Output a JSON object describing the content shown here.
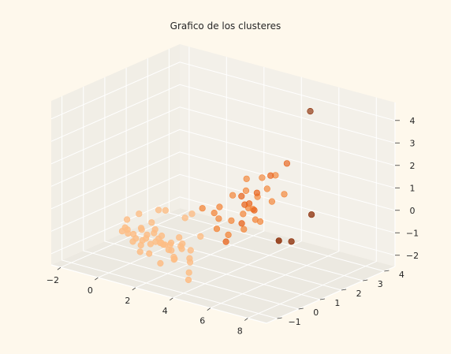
{
  "chart_data": {
    "type": "scatter",
    "projection": "3d",
    "title": "Grafico de los clusteres",
    "xlabel": "",
    "ylabel": "",
    "zlabel": "",
    "xlim": [
      -2.5,
      9
    ],
    "ylim": [
      -1.5,
      4.5
    ],
    "zlim": [
      -2.5,
      4.8
    ],
    "x_ticks": [
      "−2",
      "0",
      "2",
      "4",
      "6",
      "8"
    ],
    "y_ticks": [
      "−1",
      "0",
      "1",
      "2",
      "3",
      "4"
    ],
    "z_ticks": [
      "−2",
      "−1",
      "0",
      "1",
      "2",
      "3",
      "4"
    ],
    "x_tick_values": [
      -2,
      0,
      2,
      4,
      6,
      8
    ],
    "y_tick_values": [
      -1,
      0,
      1,
      2,
      3,
      4
    ],
    "z_tick_values": [
      -2,
      -1,
      0,
      1,
      2,
      3,
      4
    ],
    "grid": true,
    "colormap": "Oranges",
    "colors": {
      "background": "#fef8ec",
      "pane": "#f1eee6",
      "grid": "#ffffff",
      "cluster_light": "#fdbd85",
      "cluster_mid": "#f3873c",
      "cluster_dark": "#e8641d",
      "cluster_darkest": "#8b2c05"
    },
    "series": [
      {
        "cluster": 0,
        "color": "#fdbd85",
        "points": [
          [
            -1.0,
            0.5,
            -1.5
          ],
          [
            -0.8,
            0.6,
            -1.6
          ],
          [
            -0.6,
            0.4,
            -1.3
          ],
          [
            -0.5,
            0.7,
            -1.8
          ],
          [
            -0.4,
            0.5,
            -1.5
          ],
          [
            -0.3,
            0.8,
            -1.4
          ],
          [
            -0.2,
            0.3,
            -1.7
          ],
          [
            -0.1,
            0.6,
            -1.2
          ],
          [
            0.0,
            0.5,
            -1.9
          ],
          [
            0.1,
            0.7,
            -1.5
          ],
          [
            0.2,
            0.4,
            -1.6
          ],
          [
            0.3,
            0.9,
            -1.3
          ],
          [
            0.4,
            0.6,
            -1.8
          ],
          [
            0.5,
            0.3,
            -1.4
          ],
          [
            0.6,
            0.8,
            -1.6
          ],
          [
            0.7,
            0.5,
            -1.2
          ],
          [
            0.8,
            0.7,
            -1.7
          ],
          [
            0.9,
            0.4,
            -1.5
          ],
          [
            1.0,
            0.6,
            -1.3
          ],
          [
            1.1,
            0.9,
            -1.8
          ],
          [
            1.2,
            0.5,
            -1.6
          ],
          [
            1.3,
            0.3,
            -1.4
          ],
          [
            1.4,
            0.7,
            -1.9
          ],
          [
            1.5,
            0.6,
            -1.5
          ],
          [
            1.6,
            0.4,
            -1.7
          ],
          [
            1.7,
            0.8,
            -1.3
          ],
          [
            1.8,
            0.5,
            -2.1
          ],
          [
            1.9,
            0.7,
            -1.6
          ],
          [
            2.0,
            0.3,
            -2.0
          ],
          [
            2.1,
            0.6,
            -1.4
          ],
          [
            2.2,
            0.9,
            -1.8
          ],
          [
            2.3,
            0.4,
            -1.5
          ],
          [
            2.4,
            0.7,
            -2.2
          ],
          [
            2.6,
            0.5,
            -1.9
          ],
          [
            2.8,
            0.3,
            -2.4
          ],
          [
            -0.9,
            1.2,
            -1.0
          ],
          [
            -0.2,
            1.5,
            -0.8
          ],
          [
            0.4,
            1.3,
            -0.6
          ],
          [
            1.1,
            1.6,
            -0.9
          ],
          [
            1.7,
            1.4,
            -0.5
          ],
          [
            -0.5,
            0.2,
            -1.1
          ],
          [
            0.3,
            0.2,
            -2.0
          ],
          [
            0.9,
            0.1,
            -1.9
          ],
          [
            1.5,
            0.1,
            -2.2
          ],
          [
            3.0,
            0.1,
            -2.6
          ],
          [
            -1.2,
            0.9,
            -1.2
          ],
          [
            2.5,
            1.1,
            -1.2
          ],
          [
            0.6,
            1.1,
            -2.0
          ],
          [
            1.3,
            0.9,
            -2.3
          ],
          [
            0.0,
            1.0,
            -1.1
          ]
        ]
      },
      {
        "cluster": 1,
        "color": "#f3873c",
        "points": [
          [
            1.8,
            1.8,
            -0.4
          ],
          [
            2.2,
            2.0,
            -0.6
          ],
          [
            2.6,
            1.9,
            -0.2
          ],
          [
            3.0,
            2.1,
            -0.8
          ],
          [
            3.4,
            2.3,
            -0.5
          ],
          [
            3.8,
            2.2,
            -0.1
          ],
          [
            4.2,
            2.4,
            -0.7
          ],
          [
            2.5,
            2.6,
            0.0
          ],
          [
            3.1,
            2.7,
            0.3
          ],
          [
            3.6,
            2.8,
            0.1
          ],
          [
            4.0,
            2.9,
            0.5
          ],
          [
            2.8,
            1.6,
            -1.0
          ],
          [
            3.3,
            1.7,
            -1.2
          ],
          [
            3.9,
            1.9,
            -0.9
          ],
          [
            4.4,
            2.0,
            -0.4
          ],
          [
            2.1,
            2.3,
            -1.0
          ],
          [
            4.6,
            2.6,
            0.2
          ],
          [
            3.5,
            3.1,
            0.8
          ],
          [
            4.1,
            3.2,
            1.0
          ],
          [
            4.8,
            3.0,
            0.4
          ],
          [
            2.9,
            2.9,
            0.7
          ],
          [
            3.7,
            2.5,
            -0.3
          ]
        ]
      },
      {
        "cluster": 2,
        "color": "#e8641d",
        "points": [
          [
            3.2,
            2.4,
            0.2
          ],
          [
            3.5,
            2.5,
            -0.1
          ],
          [
            3.8,
            2.6,
            0.4
          ],
          [
            4.0,
            2.3,
            -0.2
          ],
          [
            3.6,
            2.2,
            0.0
          ],
          [
            4.3,
            2.8,
            1.2
          ],
          [
            4.6,
            3.3,
            1.6
          ],
          [
            3.9,
            1.8,
            -0.6
          ],
          [
            3.4,
            1.5,
            -1.4
          ]
        ]
      },
      {
        "cluster": 3,
        "color": "#8b2c05",
        "points": [
          [
            5.5,
            3.6,
            4.0
          ],
          [
            7.4,
            2.0,
            0.5
          ],
          [
            7.6,
            0.3,
            0.1
          ],
          [
            6.9,
            1.5,
            -0.6
          ]
        ]
      }
    ]
  }
}
